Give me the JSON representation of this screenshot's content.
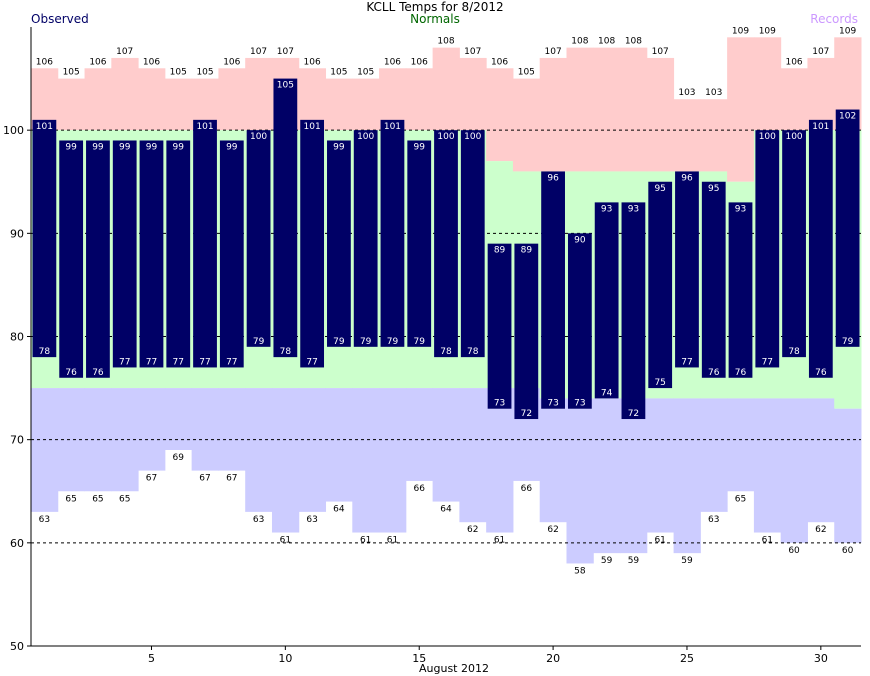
{
  "chart_data": {
    "type": "bar",
    "title": "KCLL Temps for 8/2012",
    "xlabel": "August 2012",
    "ylabel": "",
    "ylim": [
      50,
      110
    ],
    "yticks": [
      50,
      60,
      70,
      80,
      90,
      100
    ],
    "xticks": [
      5,
      10,
      15,
      20,
      25,
      30
    ],
    "grid_lines": [
      60,
      70,
      80,
      90,
      100
    ],
    "legend": {
      "observed": "Observed",
      "normals": "Normals",
      "records": "Records"
    },
    "colors": {
      "observed": "#000066",
      "normals": "#ccffcc",
      "record_high": "#ffcccc",
      "record_low": "#ccccff",
      "observed_label": "#000066",
      "normals_label": "#006600",
      "records_label": "#cc99ff"
    },
    "days": [
      1,
      2,
      3,
      4,
      5,
      6,
      7,
      8,
      9,
      10,
      11,
      12,
      13,
      14,
      15,
      16,
      17,
      18,
      19,
      20,
      21,
      22,
      23,
      24,
      25,
      26,
      27,
      28,
      29,
      30,
      31
    ],
    "series": [
      {
        "name": "Observed",
        "key": "obs_high",
        "values": [
          101,
          99,
          99,
          99,
          99,
          99,
          101,
          99,
          100,
          105,
          101,
          99,
          100,
          101,
          99,
          100,
          100,
          89,
          89,
          96,
          90,
          93,
          93,
          95,
          96,
          95,
          93,
          100,
          100,
          101,
          102
        ]
      },
      {
        "name": "Observed",
        "key": "obs_low",
        "values": [
          78,
          76,
          76,
          77,
          77,
          77,
          77,
          77,
          79,
          78,
          77,
          79,
          79,
          79,
          79,
          78,
          78,
          73,
          72,
          73,
          73,
          74,
          72,
          75,
          77,
          76,
          76,
          77,
          78,
          76,
          79
        ]
      },
      {
        "name": "Records",
        "key": "record_high",
        "values": [
          106,
          105,
          106,
          107,
          106,
          105,
          105,
          106,
          107,
          107,
          106,
          105,
          105,
          106,
          106,
          108,
          107,
          106,
          105,
          107,
          108,
          108,
          108,
          107,
          103,
          103,
          109,
          109,
          106,
          107,
          109
        ]
      },
      {
        "name": "Records",
        "key": "record_low",
        "values": [
          63,
          65,
          65,
          65,
          67,
          69,
          67,
          67,
          63,
          61,
          63,
          64,
          61,
          61,
          66,
          64,
          62,
          61,
          66,
          62,
          58,
          59,
          59,
          61,
          59,
          63,
          65,
          61,
          60,
          62,
          60
        ]
      },
      {
        "name": "Normals",
        "key": "normal_high",
        "values": [
          100,
          100,
          100,
          100,
          100,
          100,
          100,
          100,
          100,
          100,
          100,
          100,
          100,
          100,
          100,
          100,
          100,
          97,
          96,
          96,
          96,
          96,
          96,
          96,
          96,
          96,
          95,
          100,
          100,
          100,
          100
        ]
      },
      {
        "name": "Normals",
        "key": "normal_low",
        "values": [
          75,
          75,
          75,
          75,
          75,
          75,
          75,
          75,
          75,
          75,
          75,
          75,
          75,
          75,
          75,
          75,
          75,
          75,
          75,
          74,
          74,
          74,
          74,
          74,
          74,
          74,
          74,
          74,
          74,
          74,
          73
        ]
      }
    ]
  }
}
